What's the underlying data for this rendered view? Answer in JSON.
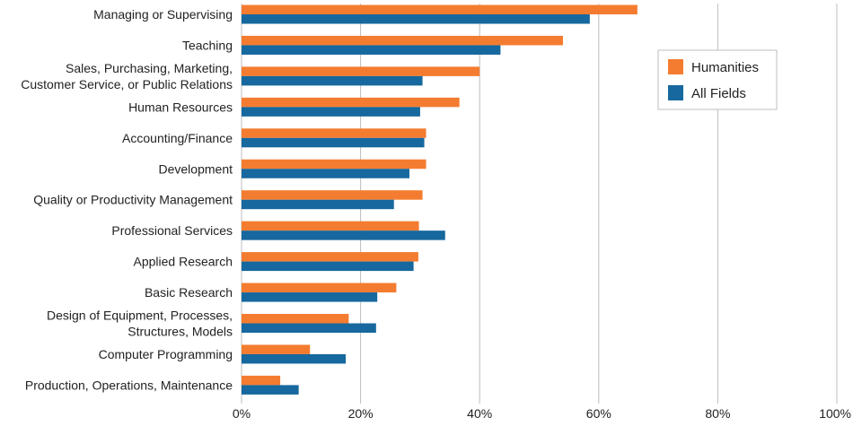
{
  "chart_data": {
    "type": "bar",
    "orientation": "horizontal",
    "categories": [
      [
        "Managing or Supervising"
      ],
      [
        "Teaching"
      ],
      [
        "Sales, Purchasing, Marketing,",
        "Customer Service, or Public Relations"
      ],
      [
        "Human Resources"
      ],
      [
        "Accounting/Finance"
      ],
      [
        "Development"
      ],
      [
        "Quality or Productivity Management"
      ],
      [
        "Professional Services"
      ],
      [
        "Applied Research"
      ],
      [
        "Basic Research"
      ],
      [
        "Design of Equipment, Processes,",
        "Structures, Models"
      ],
      [
        "Computer Programming"
      ],
      [
        "Production, Operations, Maintenance"
      ]
    ],
    "series": [
      {
        "name": "Humanities",
        "color": "#f47c30",
        "values": [
          66.5,
          54,
          40,
          36.6,
          31,
          31,
          30.4,
          29.8,
          29.7,
          26,
          18,
          11.5,
          6.5
        ]
      },
      {
        "name": "All Fields",
        "color": "#16689e",
        "values": [
          58.5,
          43.5,
          30.4,
          30,
          30.7,
          28.2,
          25.6,
          34.2,
          28.9,
          22.8,
          22.6,
          17.5,
          9.6
        ]
      }
    ],
    "xlim": [
      0,
      100
    ],
    "xticks": [
      "0%",
      "20%",
      "40%",
      "60%",
      "80%",
      "100%"
    ],
    "grid": true,
    "legend": "top-right",
    "title": "",
    "xlabel": "",
    "ylabel": ""
  }
}
